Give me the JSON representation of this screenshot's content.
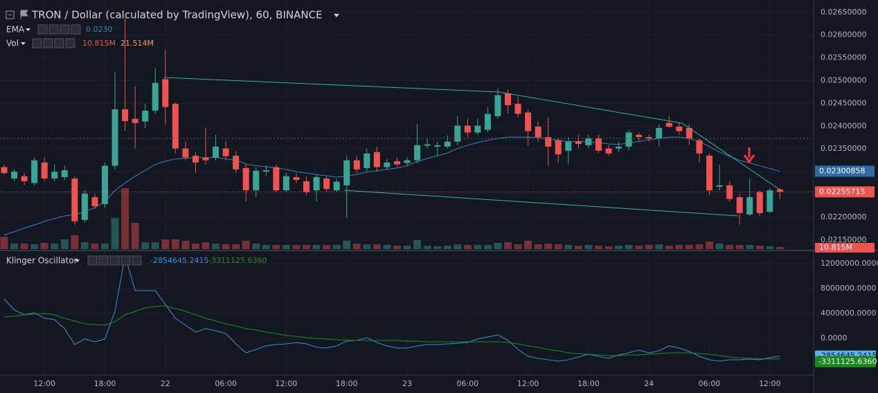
{
  "chart_data": [
    {
      "type": "candlestick",
      "title": "TRON / Dollar (calculated by TradingView), 60, BINANCE",
      "categories": [
        null,
        null,
        null,
        null,
        "12:00",
        null,
        null,
        null,
        null,
        null,
        "18:00",
        null,
        null,
        null,
        null,
        null,
        "22",
        null,
        null,
        null,
        null,
        null,
        "06:00",
        null,
        null,
        null,
        null,
        null,
        "12:00",
        null,
        null,
        null,
        null,
        null,
        "18:00",
        null,
        null,
        null,
        null,
        null,
        "23",
        null,
        null,
        null,
        null,
        null,
        "06:00",
        null,
        null,
        null,
        null,
        null,
        "12:00",
        null,
        null,
        null,
        null,
        null,
        "18:00",
        null,
        null,
        null,
        null,
        null,
        "24",
        null,
        null,
        null,
        null,
        null,
        "06:00",
        null,
        null,
        null,
        null,
        null,
        "12:00",
        null
      ],
      "open": [
        0.0231,
        0.02285,
        0.0229,
        0.02275,
        0.0232,
        0.02285,
        0.02288,
        0.02285,
        0.02194,
        0.02244,
        0.02229,
        0.02313,
        0.02437,
        0.02416,
        0.0241,
        0.02434,
        0.02503,
        0.02449,
        0.02351,
        0.02335,
        0.02331,
        0.02331,
        0.02351,
        0.02335,
        0.02308,
        0.02259,
        0.023,
        0.0231,
        0.02259,
        0.02288,
        0.02279,
        0.02259,
        0.02285,
        0.02259,
        0.0227,
        0.02325,
        0.02308,
        0.02343,
        0.0231,
        0.02323,
        0.02319,
        0.02325,
        0.02357,
        0.02355,
        0.02355,
        0.02366,
        0.02401,
        0.02386,
        0.02392,
        0.02422,
        0.02472,
        0.02449,
        0.0243,
        0.02399,
        0.02376,
        0.02369,
        0.02346,
        0.02367,
        0.02358,
        0.02373,
        0.02351,
        0.02351,
        0.02355,
        0.02381,
        0.02376,
        0.02373,
        0.02407,
        0.02399,
        0.02396,
        0.02369,
        0.02335,
        0.02267,
        0.0227,
        0.02244,
        0.02206,
        0.02255,
        0.02212,
        0.02261
      ],
      "high": [
        0.02316,
        0.02305,
        0.02297,
        0.02331,
        0.02331,
        0.02316,
        0.02313,
        0.0229,
        0.02259,
        0.02252,
        0.0232,
        0.02518,
        0.02639,
        0.02487,
        0.02449,
        0.02528,
        0.02568,
        0.02452,
        0.02366,
        0.02343,
        0.02396,
        0.02381,
        0.02366,
        0.02346,
        0.02316,
        0.0231,
        0.02313,
        0.02316,
        0.02297,
        0.02297,
        0.0229,
        0.02294,
        0.0229,
        0.02285,
        0.02335,
        0.02335,
        0.02351,
        0.02355,
        0.02328,
        0.02331,
        0.02331,
        0.02404,
        0.02373,
        0.02366,
        0.0238,
        0.02422,
        0.02416,
        0.02416,
        0.02442,
        0.02483,
        0.0248,
        0.02465,
        0.02437,
        0.02411,
        0.02419,
        0.02373,
        0.02376,
        0.02381,
        0.02381,
        0.02381,
        0.02358,
        0.02366,
        0.02392,
        0.02386,
        0.02381,
        0.02404,
        0.02422,
        0.02407,
        0.02404,
        0.02373,
        0.0234,
        0.02316,
        0.02279,
        0.02252,
        0.02285,
        0.02259,
        0.02264,
        0.02264
      ],
      "low": [
        0.02294,
        0.02279,
        0.0227,
        0.0227,
        0.02279,
        0.02279,
        0.02282,
        0.02183,
        0.02188,
        0.02218,
        0.02221,
        0.02305,
        0.02389,
        0.02351,
        0.02396,
        0.02427,
        0.02404,
        0.0234,
        0.02325,
        0.02297,
        0.02316,
        0.02325,
        0.02325,
        0.02297,
        0.02234,
        0.02244,
        0.0229,
        0.02255,
        0.02255,
        0.02275,
        0.02249,
        0.02234,
        0.02255,
        0.02255,
        0.02199,
        0.02297,
        0.023,
        0.023,
        0.02305,
        0.0231,
        0.02313,
        0.02319,
        0.02351,
        0.02335,
        0.02351,
        0.02358,
        0.02376,
        0.02381,
        0.02386,
        0.02416,
        0.02427,
        0.02419,
        0.02358,
        0.02366,
        0.02313,
        0.0232,
        0.02316,
        0.02351,
        0.02351,
        0.0234,
        0.02335,
        0.02343,
        0.02346,
        0.02366,
        0.02366,
        0.02355,
        0.02396,
        0.02381,
        0.02358,
        0.0232,
        0.02249,
        0.02259,
        0.02234,
        0.02183,
        0.02203,
        0.02203,
        0.02209,
        0.0224
      ],
      "close": [
        0.02297,
        0.023,
        0.02279,
        0.02325,
        0.02285,
        0.023,
        0.02303,
        0.02191,
        0.02252,
        0.02224,
        0.02313,
        0.02437,
        0.02411,
        0.02407,
        0.02434,
        0.02495,
        0.02442,
        0.02351,
        0.02331,
        0.0232,
        0.02325,
        0.02355,
        0.02334,
        0.02305,
        0.02259,
        0.02302,
        0.02303,
        0.02259,
        0.0229,
        0.02282,
        0.02255,
        0.02288,
        0.02262,
        0.02278,
        0.02325,
        0.02305,
        0.0234,
        0.0231,
        0.0232,
        0.02316,
        0.02325,
        0.02358,
        0.0236,
        0.02358,
        0.02366,
        0.02401,
        0.02386,
        0.02401,
        0.02427,
        0.02468,
        0.02446,
        0.02427,
        0.02389,
        0.02376,
        0.02355,
        0.02338,
        0.02366,
        0.02361,
        0.02373,
        0.02346,
        0.0234,
        0.02355,
        0.02386,
        0.02376,
        0.02373,
        0.02396,
        0.02399,
        0.02389,
        0.02373,
        0.0234,
        0.02259,
        0.0227,
        0.0224,
        0.02209,
        0.02244,
        0.02209,
        0.02259,
        0.02255715
      ],
      "last_label": "0.02255715",
      "up_color": "#3aa597",
      "down_color": "#ef5350",
      "ema": {
        "name": "EMA",
        "legend_label": "0.0230",
        "color": "#3f7fc0",
        "last_label": "0.02300858",
        "values": [
          0.02161,
          0.02168,
          0.02176,
          0.02183,
          0.02191,
          0.02197,
          0.02203,
          0.02206,
          0.02212,
          0.02221,
          0.02234,
          0.02259,
          0.02275,
          0.0229,
          0.02303,
          0.02316,
          0.02323,
          0.02328,
          0.02329,
          0.02331,
          0.02331,
          0.02331,
          0.02328,
          0.02325,
          0.02317,
          0.02313,
          0.02311,
          0.02308,
          0.02305,
          0.023,
          0.02297,
          0.02294,
          0.02291,
          0.02288,
          0.0229,
          0.02294,
          0.02299,
          0.02302,
          0.02305,
          0.02308,
          0.02313,
          0.02322,
          0.02329,
          0.02335,
          0.02341,
          0.02351,
          0.02358,
          0.02364,
          0.02369,
          0.02373,
          0.02376,
          0.02376,
          0.02376,
          0.02375,
          0.02372,
          0.02369,
          0.02366,
          0.02366,
          0.02366,
          0.02364,
          0.02361,
          0.0236,
          0.02363,
          0.02366,
          0.0237,
          0.02373,
          0.02376,
          0.02376,
          0.02373,
          0.02366,
          0.02355,
          0.02343,
          0.02334,
          0.02325,
          0.02319,
          0.02313,
          0.02307,
          0.02300858
        ]
      },
      "volume": {
        "name": "Vol",
        "last_label": "10.815M",
        "ma_label": "21.514M",
        "ylim": [
          0,
          400
        ],
        "values": [
          65,
          29,
          29,
          25,
          33,
          29,
          51,
          73,
          36,
          29,
          29,
          164,
          320,
          138,
          36,
          36,
          51,
          51,
          44,
          29,
          36,
          29,
          25,
          25,
          44,
          29,
          22,
          22,
          22,
          22,
          22,
          22,
          22,
          22,
          44,
          29,
          25,
          25,
          22,
          18,
          18,
          47,
          18,
          15,
          18,
          25,
          22,
          22,
          22,
          33,
          36,
          25,
          44,
          25,
          29,
          25,
          22,
          18,
          22,
          18,
          15,
          18,
          22,
          18,
          22,
          25,
          18,
          22,
          22,
          25,
          40,
          29,
          22,
          22,
          22,
          18,
          15,
          10.815
        ]
      },
      "ylim": [
        0.0213,
        0.02677
      ],
      "yticks": [
        {
          "value": 0.0215,
          "label": "0.02150000"
        },
        {
          "value": 0.022,
          "label": "0.02200000"
        },
        {
          "value": 0.0225,
          "label": "0.02250000"
        },
        {
          "value": 0.023,
          "label": "0.02300000"
        },
        {
          "value": 0.0235,
          "label": "0.02350000"
        },
        {
          "value": 0.024,
          "label": "0.02400000"
        },
        {
          "value": 0.0245,
          "label": "0.02450000"
        },
        {
          "value": 0.025,
          "label": "0.02500000"
        },
        {
          "value": 0.0255,
          "label": "0.02550000"
        },
        {
          "value": 0.026,
          "label": "0.02600000"
        },
        {
          "value": 0.0265,
          "label": "0.02650000"
        }
      ],
      "grid": true
    },
    {
      "type": "line",
      "title": "Klinger Oscillator",
      "series": [
        {
          "color": "#3d8fd6",
          "last_label": "-2854645.2415",
          "values": [
            6330000,
            4560000,
            3780000,
            4110000,
            3220000,
            3000000,
            1560000,
            -1000000,
            -110000,
            -560000,
            -110000,
            4330000,
            13220000,
            7670000,
            7670000,
            7670000,
            5440000,
            3220000,
            2110000,
            1000000,
            1560000,
            1220000,
            780000,
            -890000,
            -2330000,
            -1780000,
            -1220000,
            -1000000,
            -890000,
            -670000,
            -890000,
            -1440000,
            -1560000,
            -1220000,
            -440000,
            -330000,
            110000,
            -670000,
            -1220000,
            -1560000,
            -1560000,
            -1220000,
            -1000000,
            -1000000,
            -890000,
            -780000,
            -670000,
            -110000,
            220000,
            560000,
            -330000,
            -1780000,
            -2890000,
            -3220000,
            -3440000,
            -3670000,
            -3440000,
            -3000000,
            -2560000,
            -2890000,
            -3220000,
            -2670000,
            -2330000,
            -1890000,
            -2330000,
            -2000000,
            -1220000,
            -1560000,
            -2110000,
            -2890000,
            -3440000,
            -3670000,
            -3440000,
            -3440000,
            -3330000,
            -3440000,
            -3110000,
            -2854645.2415
          ]
        },
        {
          "color": "#1f8f24",
          "last_label": "-3311125.6360",
          "values": [
            3440000,
            3560000,
            3780000,
            3890000,
            4000000,
            3780000,
            3220000,
            2780000,
            2330000,
            2220000,
            2110000,
            2670000,
            3780000,
            4330000,
            4890000,
            5110000,
            5220000,
            4780000,
            4330000,
            3780000,
            3220000,
            2780000,
            2330000,
            2000000,
            1560000,
            1330000,
            1000000,
            780000,
            440000,
            330000,
            110000,
            0,
            -110000,
            -220000,
            -330000,
            -330000,
            -330000,
            -330000,
            -330000,
            -330000,
            -440000,
            -440000,
            -560000,
            -560000,
            -560000,
            -560000,
            -560000,
            -560000,
            -560000,
            -560000,
            -670000,
            -890000,
            -1220000,
            -1440000,
            -1780000,
            -2000000,
            -2330000,
            -2440000,
            -2560000,
            -2670000,
            -2780000,
            -2780000,
            -2670000,
            -2670000,
            -2560000,
            -2440000,
            -2330000,
            -2330000,
            -2330000,
            -2440000,
            -2560000,
            -2780000,
            -3000000,
            -3110000,
            -3220000,
            -3280000,
            -3330000,
            -3311125.636
          ]
        }
      ],
      "ylim": [
        -5670000,
        13780000
      ],
      "yticks": [
        {
          "value": 0,
          "label": "0.0000"
        },
        {
          "value": 4000000,
          "label": "4000000.0000"
        },
        {
          "value": 8000000,
          "label": "8000000.0000"
        },
        {
          "value": 12000000,
          "label": "12000000.0000"
        }
      ],
      "grid": true
    }
  ]
}
